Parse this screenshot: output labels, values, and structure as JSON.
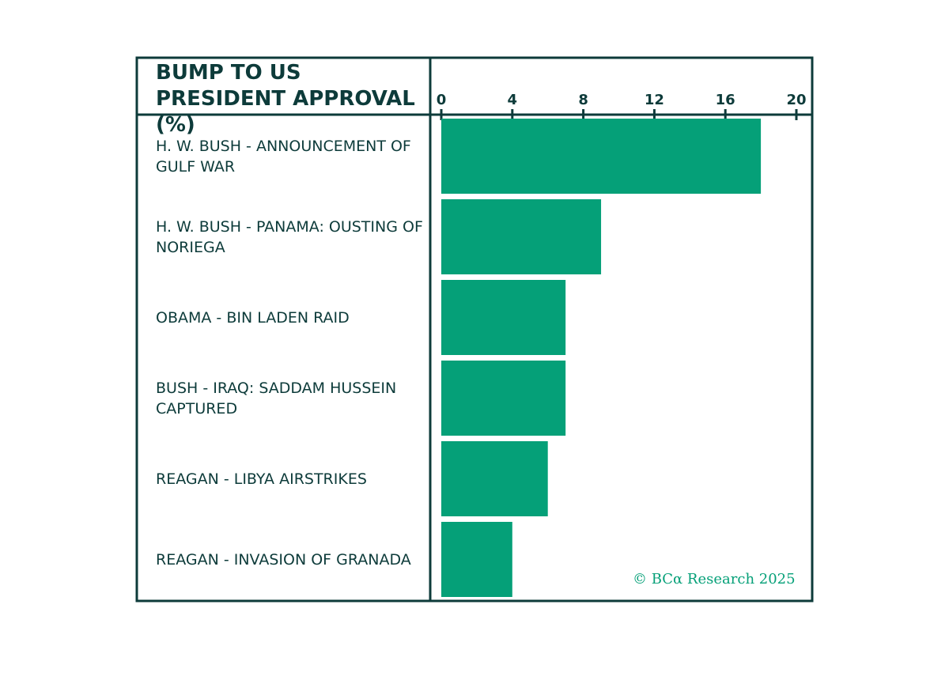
{
  "chart_data": {
    "type": "hbar",
    "title": "BUMP TO US PRESIDENT APPROVAL (%)",
    "categories": [
      "H. W. BUSH - ANNOUNCEMENT OF GULF WAR",
      "H. W. BUSH - PANAMA: OUSTING OF NORIEGA",
      "OBAMA - BIN LADEN RAID",
      "BUSH - IRAQ: SADDAM HUSSEIN CAPTURED",
      "REAGAN - LIBYA AIRSTRIKES",
      "REAGAN - INVASION OF GRANADA"
    ],
    "values": [
      18,
      9,
      7,
      7,
      6,
      4
    ],
    "color": "#05a078",
    "xlim": [
      0,
      20
    ],
    "xticks": [
      0,
      4,
      8,
      12,
      16,
      20
    ],
    "source": "© BCα Research 2025"
  }
}
